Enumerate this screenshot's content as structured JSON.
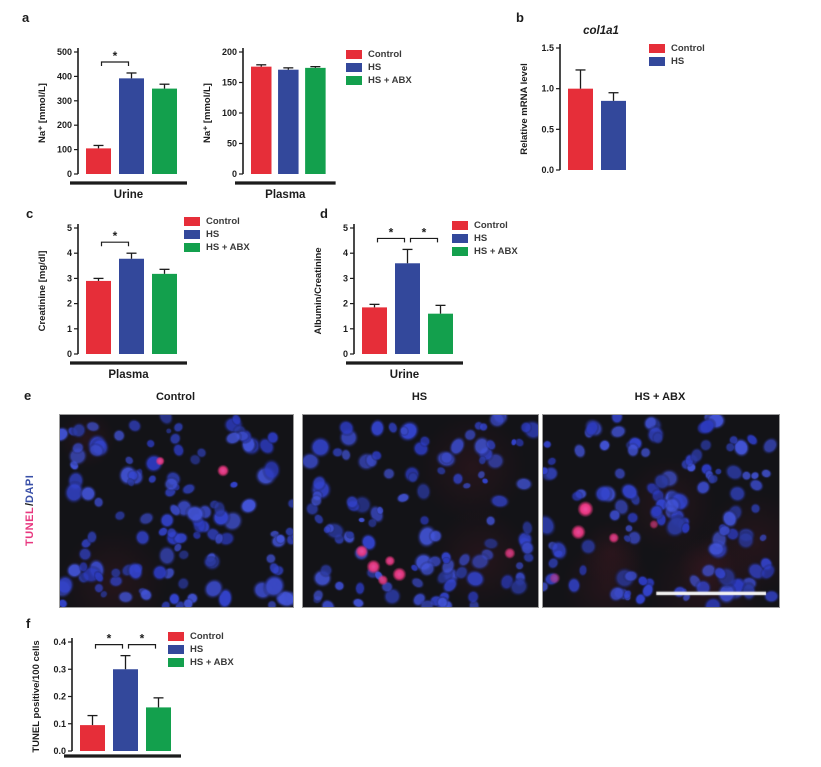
{
  "colors": {
    "control": "#E62E39",
    "hs": "#33489B",
    "hs_abx": "#13A04D",
    "tunel_pink": "#E8377F",
    "dapi_blue": "#3A50A8",
    "axis": "#1C1C1C",
    "micro_bg": "#131317",
    "scale_bar": "#F2F2F2"
  },
  "panels": {
    "a": "a",
    "b": "b",
    "c": "c",
    "d": "d",
    "e": "e",
    "f": "f"
  },
  "legends": {
    "three_group": [
      {
        "label": "Control",
        "color": "control"
      },
      {
        "label": "HS",
        "color": "hs"
      },
      {
        "label": "HS + ABX",
        "color": "hs_abx"
      }
    ],
    "two_group": [
      {
        "label": "Control",
        "color": "control"
      },
      {
        "label": "HS",
        "color": "hs"
      }
    ]
  },
  "chart_data": [
    {
      "id": "a-urine",
      "type": "bar",
      "ylabel": "Na⁺ [mmol/L]",
      "xlabel": "Urine",
      "ylim": [
        0,
        500
      ],
      "yticks": [
        "0",
        "100",
        "200",
        "300",
        "400",
        "500"
      ],
      "categories": [
        "Control",
        "HS",
        "HS + ABX"
      ],
      "values": [
        105,
        392,
        350
      ],
      "errors": [
        12,
        22,
        18
      ],
      "color_keys": [
        "control",
        "hs",
        "hs_abx"
      ],
      "sig": [
        {
          "pair": [
            0,
            1
          ],
          "label": "*"
        }
      ]
    },
    {
      "id": "a-plasma",
      "type": "bar",
      "ylabel": "Na⁺ [mmol/L]",
      "xlabel": "Plasma",
      "ylim": [
        0,
        200
      ],
      "yticks": [
        "0",
        "50",
        "100",
        "150",
        "200"
      ],
      "categories": [
        "Control",
        "HS",
        "HS + ABX"
      ],
      "values": [
        176,
        171,
        174
      ],
      "errors": [
        3,
        3,
        2
      ],
      "color_keys": [
        "control",
        "hs",
        "hs_abx"
      ],
      "sig": []
    },
    {
      "id": "b-col1a1",
      "type": "bar",
      "title": "col1a1",
      "ylabel": "Relative mRNA level",
      "xlabel": "",
      "ylim": [
        0,
        1.5
      ],
      "yticks": [
        "0.0",
        "0.5",
        "1.0",
        "1.5"
      ],
      "categories": [
        "Control",
        "HS"
      ],
      "values": [
        1.0,
        0.85
      ],
      "errors": [
        0.23,
        0.1
      ],
      "color_keys": [
        "control",
        "hs"
      ],
      "sig": []
    },
    {
      "id": "c-creatinine",
      "type": "bar",
      "ylabel": "Creatinine [mg/dl]",
      "xlabel": "Plasma",
      "ylim": [
        0,
        5
      ],
      "yticks": [
        "0",
        "1",
        "2",
        "3",
        "4",
        "5"
      ],
      "categories": [
        "Control",
        "HS",
        "HS + ABX"
      ],
      "values": [
        2.9,
        3.78,
        3.18
      ],
      "errors": [
        0.1,
        0.22,
        0.18
      ],
      "color_keys": [
        "control",
        "hs",
        "hs_abx"
      ],
      "sig": [
        {
          "pair": [
            0,
            1
          ],
          "label": "*"
        }
      ]
    },
    {
      "id": "d-albumin-creatinine",
      "type": "bar",
      "ylabel": "Albumin/Creatinine",
      "xlabel": "Urine",
      "ylim": [
        0,
        5
      ],
      "yticks": [
        "0",
        "1",
        "2",
        "3",
        "4",
        "5"
      ],
      "categories": [
        "Control",
        "HS",
        "HS + ABX"
      ],
      "values": [
        1.85,
        3.6,
        1.6
      ],
      "errors": [
        0.12,
        0.55,
        0.33
      ],
      "color_keys": [
        "control",
        "hs",
        "hs_abx"
      ],
      "sig": [
        {
          "pair": [
            0,
            1
          ],
          "label": "*"
        },
        {
          "pair": [
            1,
            2
          ],
          "label": "*"
        }
      ]
    },
    {
      "id": "f-tunel",
      "type": "bar",
      "ylabel": "TUNEL positive/100 cells",
      "xlabel": "",
      "underline": true,
      "ylim": [
        0,
        0.4
      ],
      "yticks": [
        "0.0",
        "0.1",
        "0.2",
        "0.3",
        "0.4"
      ],
      "categories": [
        "Control",
        "HS",
        "HS + ABX"
      ],
      "values": [
        0.095,
        0.3,
        0.16
      ],
      "errors": [
        0.035,
        0.05,
        0.035
      ],
      "color_keys": [
        "control",
        "hs",
        "hs_abx"
      ],
      "sig": [
        {
          "pair": [
            0,
            1
          ],
          "label": "*"
        },
        {
          "pair": [
            1,
            2
          ],
          "label": "*"
        }
      ]
    }
  ],
  "micrographs": {
    "row_label": {
      "tunel": "TUNEL",
      "slash": "/",
      "dapi": "DAPI"
    },
    "panels": [
      {
        "label": "Control",
        "nuclei_count": 95,
        "tunel_spots": [
          [
            0.43,
            0.24,
            2.6,
            0.9
          ],
          [
            0.7,
            0.29,
            3.4,
            0.95
          ]
        ],
        "tint": 2,
        "scale_bar": false
      },
      {
        "label": "HS",
        "nuclei_count": 88,
        "tunel_spots": [
          [
            0.25,
            0.71,
            3.6,
            0.95
          ],
          [
            0.3,
            0.79,
            4.0,
            0.95
          ],
          [
            0.37,
            0.76,
            3.0,
            0.9
          ],
          [
            0.41,
            0.83,
            4.0,
            0.95
          ],
          [
            0.34,
            0.86,
            3.0,
            0.85
          ],
          [
            0.88,
            0.72,
            3.2,
            0.8
          ]
        ],
        "tint": 2,
        "scale_bar": false
      },
      {
        "label": "HS + ABX",
        "nuclei_count": 100,
        "tunel_spots": [
          [
            0.18,
            0.49,
            4.6,
            1.0
          ],
          [
            0.15,
            0.61,
            4.2,
            0.95
          ],
          [
            0.3,
            0.64,
            3.0,
            0.85
          ],
          [
            0.05,
            0.85,
            3.2,
            0.5
          ],
          [
            0.47,
            0.57,
            2.6,
            0.6
          ]
        ],
        "tint": 6,
        "scale_bar": true
      }
    ]
  }
}
